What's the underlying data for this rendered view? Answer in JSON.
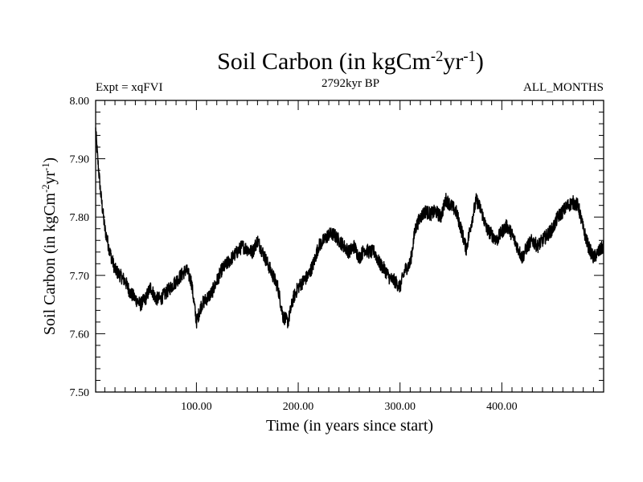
{
  "chart_data": {
    "type": "line",
    "title": "Soil Carbon (in kgCm-2yr-1)",
    "title_parts": {
      "base": "Soil Carbon (in kgCm",
      "exp1": "-2",
      "mid": "yr",
      "exp2": "-1",
      "end": ")"
    },
    "subtitle": "2792kyr BP",
    "left_label": "Expt = xqFVI",
    "right_label": "ALL_MONTHS",
    "xlabel": "Time (in years since start)",
    "ylabel": "Soil Carbon (in kgCm-2yr-1)",
    "ylabel_parts": {
      "base": "Soil Carbon (in kgCm",
      "exp1": "-2",
      "mid": "yr",
      "exp2": "-1",
      "end": ")"
    },
    "xlim": [
      1,
      500
    ],
    "ylim": [
      7.5,
      8.0
    ],
    "x_ticks": [
      100,
      200,
      300,
      400
    ],
    "x_tick_labels": [
      "100.00",
      "200.00",
      "300.00",
      "400.00"
    ],
    "y_ticks": [
      7.5,
      7.6,
      7.7,
      7.8,
      7.9,
      8.0
    ],
    "y_tick_labels": [
      "7.50",
      "7.60",
      "7.70",
      "7.80",
      "7.90",
      "8.00"
    ],
    "series": [
      {
        "name": "Soil Carbon",
        "color": "#000000",
        "noise_amplitude": 0.012,
        "x": [
          1,
          3,
          6,
          10,
          15,
          20,
          25,
          30,
          35,
          40,
          45,
          50,
          55,
          60,
          65,
          70,
          75,
          80,
          85,
          90,
          95,
          100,
          105,
          110,
          115,
          120,
          125,
          130,
          135,
          140,
          145,
          150,
          155,
          160,
          165,
          170,
          175,
          180,
          185,
          190,
          195,
          200,
          205,
          210,
          215,
          220,
          225,
          230,
          235,
          240,
          245,
          250,
          255,
          260,
          265,
          270,
          275,
          280,
          285,
          290,
          295,
          300,
          305,
          310,
          315,
          320,
          325,
          330,
          335,
          340,
          345,
          350,
          355,
          360,
          365,
          370,
          375,
          380,
          385,
          390,
          395,
          400,
          405,
          410,
          415,
          420,
          425,
          430,
          435,
          440,
          445,
          450,
          455,
          460,
          465,
          470,
          475,
          480,
          485,
          490,
          495,
          500
        ],
        "values": [
          7.95,
          7.9,
          7.84,
          7.78,
          7.74,
          7.71,
          7.7,
          7.69,
          7.67,
          7.66,
          7.65,
          7.66,
          7.68,
          7.66,
          7.66,
          7.67,
          7.68,
          7.69,
          7.7,
          7.71,
          7.69,
          7.62,
          7.65,
          7.66,
          7.67,
          7.69,
          7.71,
          7.72,
          7.73,
          7.74,
          7.75,
          7.745,
          7.74,
          7.76,
          7.74,
          7.72,
          7.7,
          7.68,
          7.63,
          7.62,
          7.66,
          7.68,
          7.69,
          7.7,
          7.72,
          7.75,
          7.76,
          7.77,
          7.77,
          7.76,
          7.75,
          7.74,
          7.75,
          7.73,
          7.745,
          7.74,
          7.74,
          7.72,
          7.71,
          7.695,
          7.69,
          7.68,
          7.71,
          7.72,
          7.78,
          7.8,
          7.81,
          7.805,
          7.81,
          7.8,
          7.83,
          7.82,
          7.81,
          7.78,
          7.745,
          7.79,
          7.83,
          7.81,
          7.78,
          7.77,
          7.76,
          7.775,
          7.785,
          7.77,
          7.75,
          7.73,
          7.75,
          7.76,
          7.75,
          7.76,
          7.77,
          7.78,
          7.8,
          7.81,
          7.82,
          7.825,
          7.82,
          7.78,
          7.75,
          7.73,
          7.74,
          7.75
        ]
      }
    ]
  }
}
